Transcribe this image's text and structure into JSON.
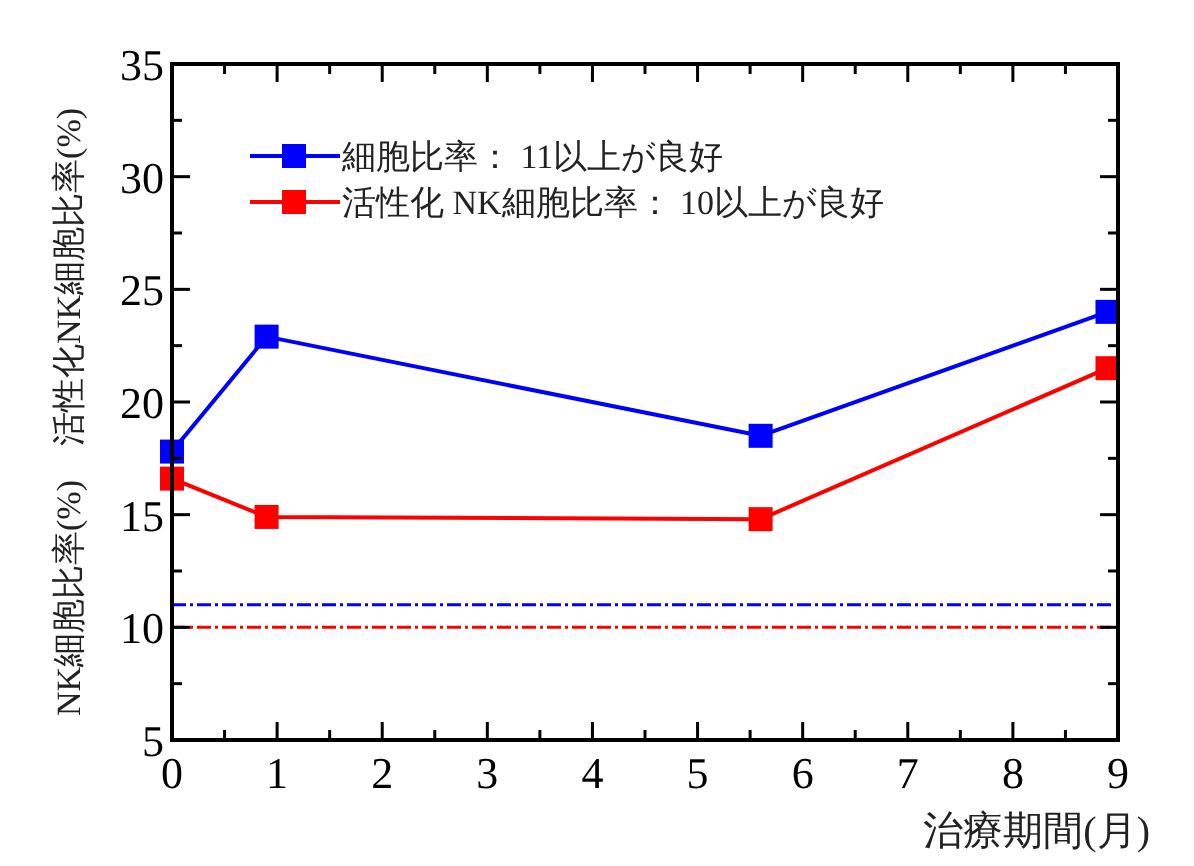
{
  "chart_data": {
    "type": "line",
    "xlabel": "治療期間(月)",
    "ylabel": "NK細胞比率(%)　活性化NK細胞比率(%)",
    "xlim": [
      0,
      9
    ],
    "ylim": [
      5,
      35
    ],
    "xticks": [
      0,
      {
        "value": 0.5,
        "label": null
      },
      1,
      {
        "value": 1.5,
        "label": null
      },
      2,
      {
        "value": 2.5,
        "label": null
      },
      3,
      {
        "value": 3.5,
        "label": null
      },
      4,
      {
        "value": 4.5,
        "label": null
      },
      5,
      {
        "value": 5.5,
        "label": null
      },
      6,
      {
        "value": 6.5,
        "label": null
      },
      7,
      {
        "value": 7.5,
        "label": null
      },
      8,
      {
        "value": 8.5,
        "label": null
      },
      9
    ],
    "yticks": [
      5,
      {
        "value": 7.5,
        "label": null
      },
      10,
      {
        "value": 12.5,
        "label": null
      },
      15,
      {
        "value": 17.5,
        "label": null
      },
      20,
      {
        "value": 22.5,
        "label": null
      },
      25,
      {
        "value": 27.5,
        "label": null
      },
      30,
      {
        "value": 32.5,
        "label": null
      },
      35
    ],
    "grid": false,
    "legend": "top left",
    "marker": "square",
    "line_style": "solid",
    "series": [
      {
        "name": "細胞比率： 11以上が良好",
        "color": "#0000ff",
        "x": [
          0,
          0.9,
          5.6,
          8.9
        ],
        "values": [
          17.8,
          22.9,
          18.5,
          24.0
        ]
      },
      {
        "name": "活性化 NK細胞比率： 10以上が良好",
        "color": "#ff0000",
        "x": [
          0,
          0.9,
          5.6,
          8.9
        ],
        "values": [
          16.6,
          14.9,
          14.8,
          21.5
        ]
      }
    ],
    "ref_lines": [
      {
        "axis": "y",
        "value": 11,
        "color": "#0000ff",
        "line_style": "dashed"
      },
      {
        "axis": "y",
        "value": 10,
        "color": "#ff0000",
        "line_style": "dashed"
      }
    ]
  }
}
